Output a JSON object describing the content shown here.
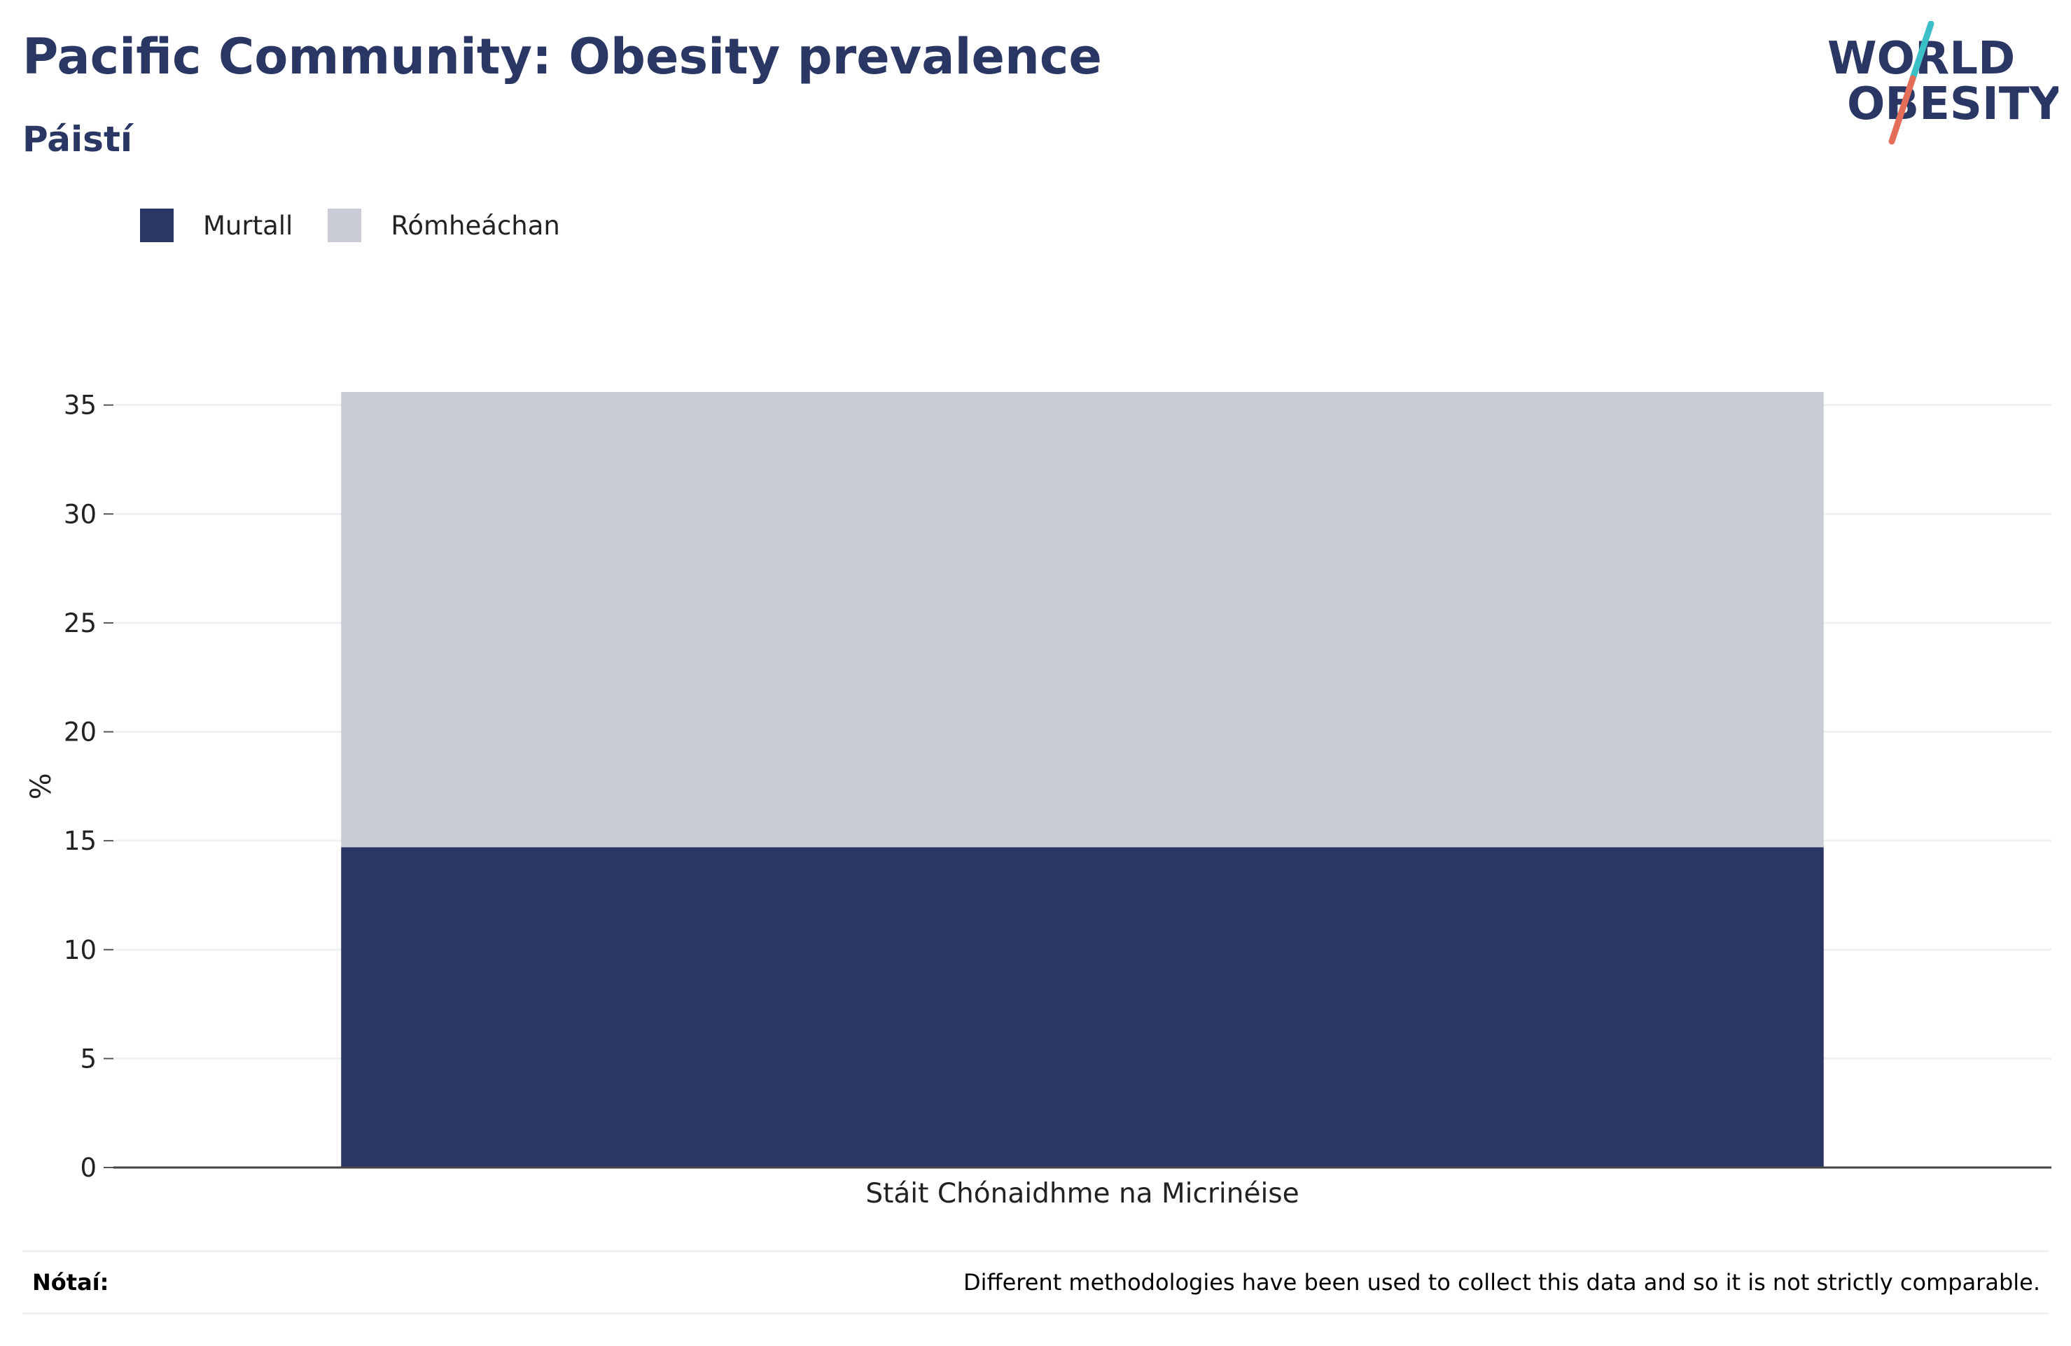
{
  "header": {
    "title": "Pacific Community: Obesity prevalence",
    "subtitle": "Páistí"
  },
  "logo": {
    "line1": "WORLD",
    "line2": "OBESITY",
    "colors": {
      "text": "#2a3663",
      "slash_top": "#3bbfc6",
      "slash_bottom": "#e56e5a"
    }
  },
  "chart_data": {
    "type": "bar",
    "stacked": true,
    "categories": [
      "Stáit Chónaidhme na Micrinéise"
    ],
    "series": [
      {
        "name": "Murtall",
        "values": [
          14.7
        ],
        "color": "#2a3663"
      },
      {
        "name": "Rómheáchan",
        "values": [
          20.9
        ],
        "color": "#cacdd8"
      }
    ],
    "ylabel": "%",
    "xlabel": "",
    "ylim": [
      0,
      35.6
    ],
    "yticks": [
      0,
      5,
      10,
      15,
      20,
      25,
      30,
      35
    ],
    "grid": true,
    "legend_position": "top-left"
  },
  "notes": {
    "label": "Nótaí:",
    "text": "Different methodologies have been used to collect this data and so it is not strictly comparable."
  }
}
